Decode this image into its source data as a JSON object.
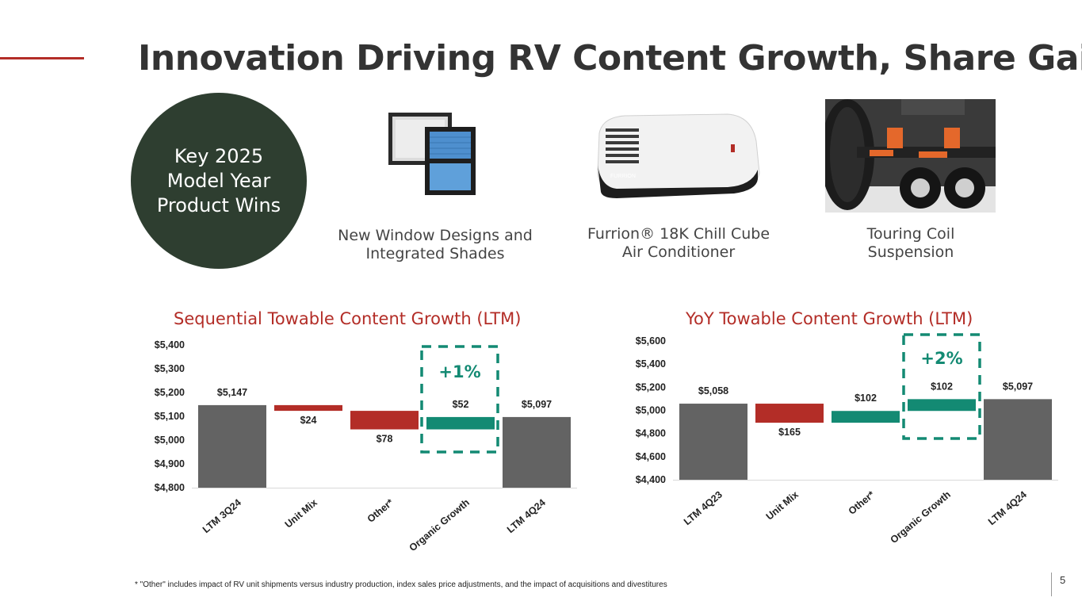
{
  "title": "Innovation Driving RV Content Growth, Share Gains",
  "badge": "Key 2025 Model Year Product Wins",
  "products": [
    {
      "caption": "New Window Designs and Integrated Shades",
      "image": "window-shades-image"
    },
    {
      "caption": "Furrion® 18K Chill Cube Air Conditioner",
      "image": "air-conditioner-image",
      "image_text": "FURRION"
    },
    {
      "caption": "Touring Coil Suspension",
      "image": "coil-suspension-image"
    }
  ],
  "colors": {
    "accent": "#b32d27",
    "positive": "#138a73",
    "negative": "#b32d27",
    "total": "#636363",
    "badge": "#2e3e30"
  },
  "chart_data": [
    {
      "type": "bar",
      "subtype": "waterfall",
      "title": "Sequential Towable Content Growth (LTM)",
      "categories": [
        "LTM 3Q24",
        "Unit Mix",
        "Other*",
        "Organic Growth",
        "LTM 4Q24"
      ],
      "bars": [
        {
          "kind": "total",
          "start": 4800,
          "end": 5147,
          "label": "$5,147"
        },
        {
          "kind": "decrease",
          "start": 5147,
          "end": 5123,
          "label": "$24"
        },
        {
          "kind": "decrease",
          "start": 5123,
          "end": 5045,
          "label": "$78"
        },
        {
          "kind": "increase",
          "start": 5045,
          "end": 5097,
          "label": "$52"
        },
        {
          "kind": "total",
          "start": 4800,
          "end": 5097,
          "label": "$5,097"
        }
      ],
      "ylim": [
        4800,
        5400
      ],
      "yticks": [
        "$4,800",
        "$4,900",
        "$5,000",
        "$5,100",
        "$5,200",
        "$5,300",
        "$5,400"
      ],
      "highlight": {
        "category": "Organic Growth",
        "label": "+1%"
      },
      "grid": false,
      "legend": "none"
    },
    {
      "type": "bar",
      "subtype": "waterfall",
      "title": "YoY Towable Content Growth (LTM)",
      "categories": [
        "LTM 4Q23",
        "Unit Mix",
        "Other*",
        "Organic Growth",
        "LTM 4Q24"
      ],
      "bars": [
        {
          "kind": "total",
          "start": 4400,
          "end": 5058,
          "label": "$5,058"
        },
        {
          "kind": "decrease",
          "start": 5058,
          "end": 4893,
          "label": "$165"
        },
        {
          "kind": "increase",
          "start": 4893,
          "end": 4995,
          "label": "$102"
        },
        {
          "kind": "increase",
          "start": 4995,
          "end": 5097,
          "label": "$102"
        },
        {
          "kind": "total",
          "start": 4400,
          "end": 5097,
          "label": "$5,097"
        }
      ],
      "ylim": [
        4400,
        5600
      ],
      "yticks": [
        "$4,400",
        "$4,600",
        "$4,800",
        "$5,000",
        "$5,200",
        "$5,400",
        "$5,600"
      ],
      "highlight": {
        "category": "Organic Growth",
        "label": "+2%"
      },
      "grid": false,
      "legend": "none"
    }
  ],
  "footnote": "* \"Other\" includes impact of RV unit shipments versus industry production, index sales price adjustments, and the impact of acquisitions and divestitures",
  "page_number": "5"
}
